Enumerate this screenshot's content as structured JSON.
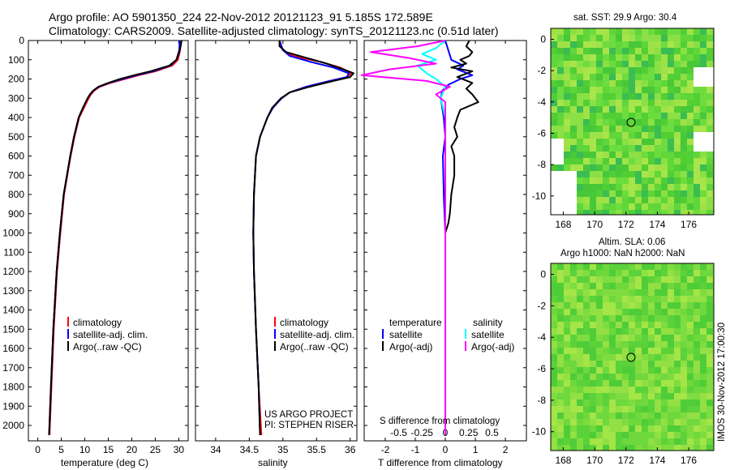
{
  "header": {
    "title_line1": "Argo profile: AO 5901350_224 22-Nov-2012 20121123_91 5.185S 172.589E",
    "title_line2": "Climatology: CARS2009. Satellite-adjusted climatology: synTS_20121123.nc (0.51d later)"
  },
  "colors": {
    "climatology": "#ff0000",
    "satellite": "#0000ff",
    "argo": "#000000",
    "salinity_satellite": "#00ffff",
    "salinity_argo": "#ff00ff"
  },
  "depth_ticks": [
    "0",
    "100",
    "200",
    "300",
    "400",
    "500",
    "600",
    "700",
    "800",
    "900",
    "1000",
    "1100",
    "1200",
    "1300",
    "1400",
    "1500",
    "1600",
    "1700",
    "1800",
    "1900",
    "2000"
  ],
  "sst_panel": {
    "title": "sat. SST: 29.9 Argo: 30.4",
    "x_ticks": [
      "168",
      "170",
      "172",
      "174",
      "176"
    ],
    "y_ticks": [
      "0",
      "-2",
      "-4",
      "-6",
      "-8",
      "-10"
    ]
  },
  "sla_panel": {
    "title_line1": "Altim. SLA: 0.06",
    "title_line2": "Argo h1000: NaN h2000: NaN",
    "x_ticks": [
      "168",
      "170",
      "172",
      "174",
      "176"
    ],
    "y_ticks": [
      "0",
      "-2",
      "-4",
      "-6",
      "-8",
      "-10"
    ]
  },
  "side_label": "IMOS 30-Nov-2012 17:00:30",
  "credit_line1": "US ARGO PROJECT",
  "credit_line2": "PI: STEPHEN RISER",
  "chart_data": [
    {
      "type": "line",
      "xlabel": "temperature (deg C)",
      "ylabel": "",
      "xlim": [
        -2,
        32
      ],
      "ylim": [
        2080,
        0
      ],
      "x_ticks": [
        "0",
        "5",
        "10",
        "15",
        "20",
        "25",
        "30"
      ],
      "legend": [
        "climatology",
        "satellite-adj. clim.",
        "Argo(..raw -QC)"
      ],
      "legend_position": "lower-middle",
      "series": [
        {
          "name": "climatology",
          "color": "#ff0000",
          "depth": [
            0,
            50,
            100,
            130,
            160,
            180,
            200,
            220,
            240,
            260,
            280,
            300,
            350,
            400,
            500,
            600,
            800,
            1000,
            1200,
            1500,
            1800,
            2050
          ],
          "values": [
            30.4,
            30.3,
            29.8,
            28.6,
            25.0,
            21.5,
            18.5,
            15.5,
            13.2,
            12.0,
            11.3,
            10.8,
            9.8,
            8.8,
            7.8,
            7.0,
            5.6,
            4.8,
            4.1,
            3.4,
            2.9,
            2.5
          ]
        },
        {
          "name": "satellite-adj. clim.",
          "color": "#0000ff",
          "depth": [
            0,
            50,
            100,
            130,
            160,
            180,
            200,
            220,
            240,
            260,
            280,
            300,
            350,
            400,
            500,
            600,
            800,
            1000,
            1200,
            1500,
            1800,
            2050
          ],
          "values": [
            30.2,
            30.1,
            29.5,
            28.2,
            24.5,
            21.0,
            18.0,
            15.2,
            13.0,
            11.8,
            11.1,
            10.6,
            9.6,
            8.7,
            7.7,
            6.9,
            5.5,
            4.7,
            4.0,
            3.3,
            2.8,
            2.4
          ]
        },
        {
          "name": "Argo(..raw -QC)",
          "color": "#000000",
          "depth": [
            0,
            30,
            60,
            100,
            130,
            160,
            180,
            200,
            220,
            240,
            260,
            280,
            300,
            350,
            400,
            500,
            600,
            800,
            1000,
            1200,
            1500,
            1800,
            2050
          ],
          "values": [
            30.6,
            30.4,
            30.1,
            29.5,
            28.0,
            24.0,
            20.5,
            17.5,
            15.0,
            12.9,
            11.8,
            11.1,
            10.6,
            9.6,
            8.7,
            7.7,
            6.9,
            5.5,
            4.7,
            4.0,
            3.3,
            2.8,
            2.4
          ]
        }
      ]
    },
    {
      "type": "line",
      "xlabel": "salinity",
      "ylabel": "",
      "xlim": [
        33.7,
        36.1
      ],
      "ylim": [
        2080,
        0
      ],
      "x_ticks": [
        "34",
        "34.5",
        "35",
        "35.5",
        "36"
      ],
      "legend": [
        "climatology",
        "satellite-adj. clim.",
        "Argo(..raw -QC)"
      ],
      "legend_position": "lower-middle",
      "series": [
        {
          "name": "climatology",
          "color": "#ff0000",
          "depth": [
            0,
            50,
            80,
            110,
            140,
            170,
            190,
            210,
            240,
            270,
            300,
            350,
            400,
            500,
            600,
            800,
            1000,
            1200,
            1500,
            1800,
            2050
          ],
          "values": [
            34.95,
            35.0,
            35.15,
            35.55,
            35.85,
            36.02,
            35.95,
            35.7,
            35.35,
            35.1,
            34.98,
            34.85,
            34.77,
            34.66,
            34.6,
            34.57,
            34.56,
            34.57,
            34.6,
            34.64,
            34.68
          ]
        },
        {
          "name": "satellite-adj. clim.",
          "color": "#0000ff",
          "depth": [
            0,
            50,
            80,
            110,
            140,
            170,
            190,
            210,
            240,
            270,
            300,
            350,
            400,
            500,
            600,
            800,
            1000,
            1200,
            1500,
            1800,
            2050
          ],
          "values": [
            34.95,
            35.0,
            35.1,
            35.4,
            35.75,
            35.98,
            35.95,
            35.7,
            35.35,
            35.1,
            34.98,
            34.85,
            34.77,
            34.66,
            34.6,
            34.57,
            34.56,
            34.57,
            34.6,
            34.64,
            34.66
          ]
        },
        {
          "name": "Argo(..raw -QC)",
          "color": "#000000",
          "depth": [
            0,
            30,
            60,
            90,
            120,
            150,
            170,
            190,
            210,
            240,
            270,
            300,
            350,
            400,
            500,
            600,
            800,
            1000,
            1200,
            1500,
            1800,
            2050
          ],
          "values": [
            34.95,
            34.95,
            35.05,
            35.35,
            35.65,
            35.9,
            36.05,
            36.0,
            35.75,
            35.4,
            35.1,
            34.97,
            34.84,
            34.77,
            34.66,
            34.6,
            34.57,
            34.56,
            34.57,
            34.6,
            34.64,
            34.66
          ]
        }
      ]
    },
    {
      "type": "line",
      "xlabel": "T difference from climatology",
      "xlabel2": "S difference from climatology",
      "ylabel": "",
      "xlim": [
        -2.7,
        2.7
      ],
      "ylim": [
        2080,
        0
      ],
      "x_ticks_T": [
        "-2",
        "-1",
        "0",
        "1",
        "2"
      ],
      "x_ticks_S": [
        "-0.5",
        "-0.25",
        "0",
        "0.25",
        "0.5"
      ],
      "legend_T_heading": "temperature",
      "legend_S_heading": "salinity",
      "legend": [
        "satellite",
        "Argo(-adj)",
        "satellite",
        "Argo(-adj)"
      ],
      "legend_position": "lower-middle",
      "series": [
        {
          "name": "satellite",
          "color": "#0000ff",
          "depth": [
            0,
            50,
            100,
            130,
            150,
            180,
            200,
            230,
            260,
            300,
            400,
            500,
            600,
            800,
            1000,
            1200,
            1500,
            2050
          ],
          "values": [
            0.0,
            0.1,
            0.2,
            0.6,
            0.4,
            0.9,
            0.5,
            0.1,
            -0.1,
            -0.15,
            -0.05,
            0.0,
            -0.08,
            -0.05,
            0.0,
            0.0,
            0.0,
            0.0
          ]
        },
        {
          "name": "Argo(-adj)",
          "color": "#000000",
          "depth": [
            0,
            30,
            60,
            80,
            100,
            120,
            140,
            160,
            190,
            220,
            250,
            280,
            320,
            360,
            400,
            450,
            500,
            550,
            600,
            700,
            800,
            900,
            950,
            1000,
            1200,
            1500,
            2050
          ],
          "values": [
            0.8,
            0.7,
            0.9,
            0.8,
            0.5,
            0.7,
            0.2,
            0.9,
            0.4,
            0.9,
            0.7,
            0.9,
            1.1,
            0.5,
            0.4,
            0.3,
            0.4,
            0.2,
            0.3,
            0.3,
            0.2,
            0.15,
            0.1,
            0.0,
            0.0,
            0.0,
            0.0
          ]
        },
        {
          "name": "satellite",
          "color": "#00ffff",
          "depth": [
            0,
            40,
            70,
            100,
            130,
            170,
            200,
            240,
            300,
            400,
            500,
            600,
            1000,
            2050
          ],
          "values": [
            0.0,
            -0.1,
            -0.25,
            -0.1,
            -0.3,
            -0.2,
            -0.1,
            0.0,
            -0.05,
            0.0,
            0.0,
            0.0,
            0.0,
            0.0
          ]
        },
        {
          "name": "Argo(-adj)",
          "color": "#ff00ff",
          "depth": [
            0,
            30,
            60,
            90,
            120,
            150,
            180,
            210,
            240,
            280,
            320,
            400,
            500,
            600,
            1000,
            2050
          ],
          "values": [
            0.0,
            -0.3,
            -0.8,
            -0.4,
            -0.1,
            -0.6,
            -0.9,
            -0.2,
            0.05,
            -0.1,
            0.0,
            0.0,
            0.0,
            0.0,
            0.0,
            0.0
          ]
        }
      ]
    }
  ]
}
